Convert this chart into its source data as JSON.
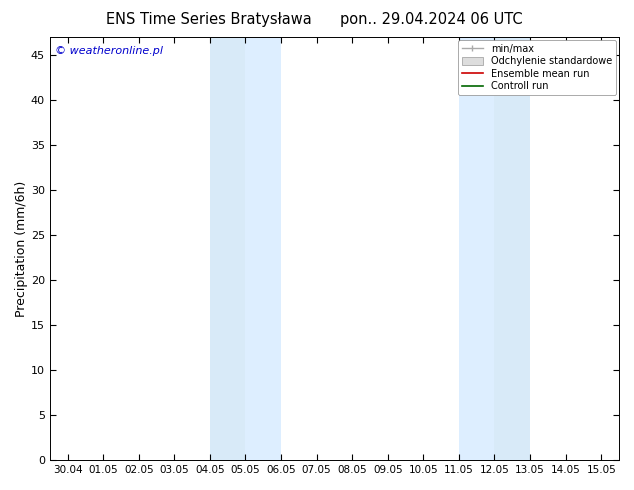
{
  "title_left": "ENS Time Series Bratysława",
  "title_right": "pon.. 29.04.2024 06 UTC",
  "ylabel": "Precipitation (mm/6h)",
  "watermark": "© weatheronline.pl",
  "ylim": [
    0,
    47
  ],
  "yticks": [
    0,
    5,
    10,
    15,
    20,
    25,
    30,
    35,
    40,
    45
  ],
  "xtick_labels": [
    "30.04",
    "01.05",
    "02.05",
    "03.05",
    "04.05",
    "05.05",
    "06.05",
    "07.05",
    "08.05",
    "09.05",
    "10.05",
    "11.05",
    "12.05",
    "13.05",
    "14.05",
    "15.05"
  ],
  "shaded_bands": [
    {
      "xmin": 4.0,
      "xmax": 5.0,
      "color": "#d8eaf8"
    },
    {
      "xmin": 5.0,
      "xmax": 6.0,
      "color": "#ddeeff"
    },
    {
      "xmin": 11.0,
      "xmax": 12.0,
      "color": "#ddeeff"
    },
    {
      "xmin": 12.0,
      "xmax": 13.0,
      "color": "#d8eaf8"
    }
  ],
  "legend_entries": [
    {
      "label": "min/max",
      "color": "#aaaaaa",
      "lw": 1.0,
      "type": "minmax"
    },
    {
      "label": "Odchylenie standardowe",
      "color": "#dddddd",
      "type": "band"
    },
    {
      "label": "Ensemble mean run",
      "color": "#cc0000",
      "lw": 1.2,
      "type": "line"
    },
    {
      "label": "Controll run",
      "color": "#006600",
      "lw": 1.2,
      "type": "line"
    }
  ],
  "background_color": "#ffffff",
  "plot_bg_color": "#ffffff",
  "border_color": "#000000",
  "figsize": [
    6.34,
    4.9
  ],
  "dpi": 100
}
